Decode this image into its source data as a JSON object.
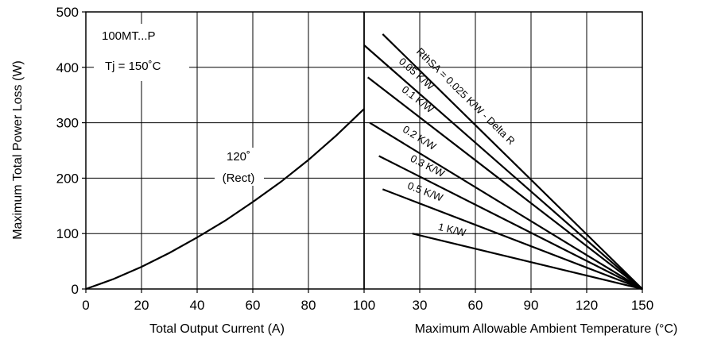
{
  "chart_data": {
    "type": "line",
    "ylabel": "Maximum Total Power Loss (W)",
    "ylim": [
      0,
      500
    ],
    "yticks": [
      0,
      100,
      200,
      300,
      400,
      500
    ],
    "grid": true,
    "left_panel": {
      "xlabel": "Total Output Current (A)",
      "xlim": [
        0,
        100
      ],
      "xticks": [
        0,
        20,
        40,
        60,
        80,
        100
      ],
      "annotations": [
        "100MT...P",
        "Tj = 150˚C",
        "120˚",
        "(Rect)"
      ],
      "series": [
        {
          "name": "120˚ (Rect)",
          "x": [
            0,
            10,
            20,
            30,
            40,
            50,
            60,
            70,
            80,
            90,
            100
          ],
          "y": [
            0,
            18,
            40,
            65,
            93,
            123,
            157,
            193,
            233,
            277,
            325
          ]
        }
      ]
    },
    "right_panel": {
      "xlabel": "Maximum Allowable Ambient Temperature (°C)",
      "xlim": [
        0,
        150
      ],
      "xticks": [
        0,
        30,
        60,
        90,
        120,
        150
      ],
      "first_tick_label": "100",
      "series": [
        {
          "name": "RthSA = 0.025 K/W - Delta R",
          "x": [
            10,
            150
          ],
          "y": [
            460,
            0
          ]
        },
        {
          "name": "0.05 K/W",
          "x": [
            0,
            150
          ],
          "y": [
            440,
            0
          ]
        },
        {
          "name": "0.1 K/W",
          "x": [
            2,
            150
          ],
          "y": [
            382,
            0
          ]
        },
        {
          "name": "0.2 K/W",
          "x": [
            3,
            150
          ],
          "y": [
            300,
            0
          ]
        },
        {
          "name": "0.3 K/W",
          "x": [
            8,
            150
          ],
          "y": [
            240,
            0
          ]
        },
        {
          "name": "0.5 K/W",
          "x": [
            10,
            150
          ],
          "y": [
            180,
            0
          ]
        },
        {
          "name": "1 K/W",
          "x": [
            26,
            150
          ],
          "y": [
            100,
            0
          ]
        }
      ]
    }
  }
}
